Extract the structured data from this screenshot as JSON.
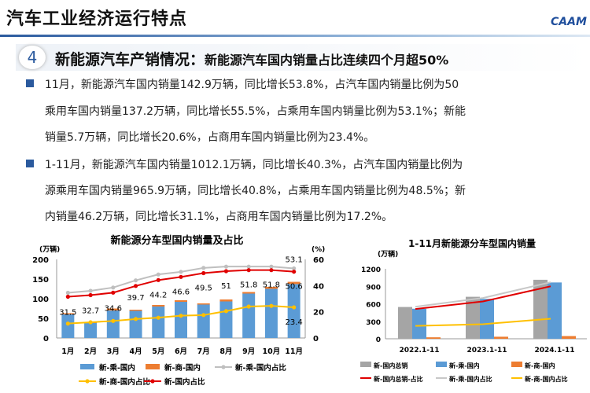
{
  "header": {
    "title": "汽车工业经济运行特点",
    "logo": "CAAM"
  },
  "section": {
    "number": "4",
    "title": "新能源汽车产销情况：",
    "subtitle": "新能源汽车国内销量占比连续四个月超50%"
  },
  "paragraphs": [
    [
      "11月，新能源汽车国内销量142.9万辆，同比增长53.8%，占汽车国内销量比例为50",
      "乘用车国内销量137.2万辆，同比增长55.5%，占乘用车国内销量比例为53.1%；新能",
      "销量5.7万辆，同比增长20.6%，占商用车国内销量比例为23.4%。"
    ],
    [
      "1-11月，新能源汽车国内销量1012.1万辆，同比增长40.3%，占汽车国内销量比例为",
      "源乘用车国内销量965.9万辆，同比增长40.8%，占乘用车国内销量比例为48.5%；新",
      "内销量46.2万辆，同比增长31.1%，占商用车国内销量比例为17.2%。"
    ]
  ],
  "chart_data": [
    {
      "type": "bar",
      "title": "新能源分车型国内销量及占比",
      "ylabel": "(万辆)",
      "y2label": "(%)",
      "ylim": [
        0,
        200
      ],
      "y2lim": [
        0,
        60
      ],
      "yticks": [
        "0",
        "50",
        "100",
        "150",
        "200"
      ],
      "y2ticks": [
        "0",
        "20",
        "40",
        "60"
      ],
      "categories": [
        "1月",
        "2月",
        "3月",
        "4月",
        "5月",
        "6月",
        "7月",
        "8月",
        "9月",
        "10月",
        "11月"
      ],
      "series": [
        {
          "name": "新-乘-国内",
          "kind": "bar",
          "color": "#5b9bd5",
          "values": [
            60,
            38,
            70,
            69,
            80,
            92,
            85,
            93,
            113,
            125,
            137.2
          ]
        },
        {
          "name": "新-商-国内",
          "kind": "bar",
          "color": "#ed7d31",
          "values": [
            3,
            2,
            5,
            3,
            4,
            4,
            3,
            5,
            4,
            5,
            5.7
          ]
        },
        {
          "name": "新-乘-国内占比",
          "kind": "line",
          "axis": "right",
          "color": "#bfbfbf",
          "values": [
            34.5,
            36,
            38.5,
            44,
            48.5,
            50.5,
            53.5,
            54.5,
            54.5,
            54.5,
            53.1
          ]
        },
        {
          "name": "新-商-国内占比",
          "kind": "line",
          "axis": "right",
          "color": "#ffc000",
          "values": [
            11,
            12,
            13,
            14.5,
            15.5,
            17,
            17.5,
            20.5,
            24,
            24.5,
            23.4
          ]
        },
        {
          "name": "新-国内占比",
          "kind": "line",
          "axis": "right",
          "color": "#e00000",
          "values": [
            31.5,
            32.7,
            34.6,
            39.7,
            44.2,
            46.6,
            49.5,
            51,
            51.8,
            51.8,
            50.6
          ]
        }
      ],
      "data_labels": [
        "31.5",
        "32.7",
        "34.6",
        "39.7",
        "44.2",
        "46.6",
        "49.5",
        "51",
        "51.8",
        "51.8",
        "50.6"
      ],
      "extra_labels": {
        "top": "53.1",
        "bottom": "23.4"
      }
    },
    {
      "type": "bar",
      "title": "1-11月新能源分车型国内销量",
      "ylabel": "(万辆)",
      "ylim": [
        0,
        1200
      ],
      "y2lim": [
        0,
        60
      ],
      "yticks": [
        "0",
        "300",
        "600",
        "900",
        "1200"
      ],
      "categories": [
        "2022.1-11",
        "2023.1-11",
        "2024.1-11"
      ],
      "series": [
        {
          "name": "新-国内总销",
          "kind": "bar",
          "color": "#a5a5a5",
          "values": [
            545,
            720,
            1012.1
          ]
        },
        {
          "name": "新-乘-国内",
          "kind": "bar",
          "color": "#5b9bd5",
          "values": [
            515,
            685,
            965.9
          ]
        },
        {
          "name": "新-商-国内",
          "kind": "bar",
          "color": "#ed7d31",
          "values": [
            25,
            35,
            46.2
          ]
        },
        {
          "name": "新-国内总销-占比",
          "kind": "line",
          "axis": "right",
          "color": "#e00000",
          "values": [
            25.5,
            32,
            45
          ]
        },
        {
          "name": "新-乘-国内占比",
          "kind": "line",
          "axis": "right",
          "color": "#c8c8c8",
          "values": [
            27.5,
            35,
            48.5
          ]
        },
        {
          "name": "新-商-国内占比",
          "kind": "line",
          "axis": "right",
          "color": "#ffc000",
          "values": [
            11,
            12.5,
            17.2
          ]
        }
      ]
    }
  ]
}
